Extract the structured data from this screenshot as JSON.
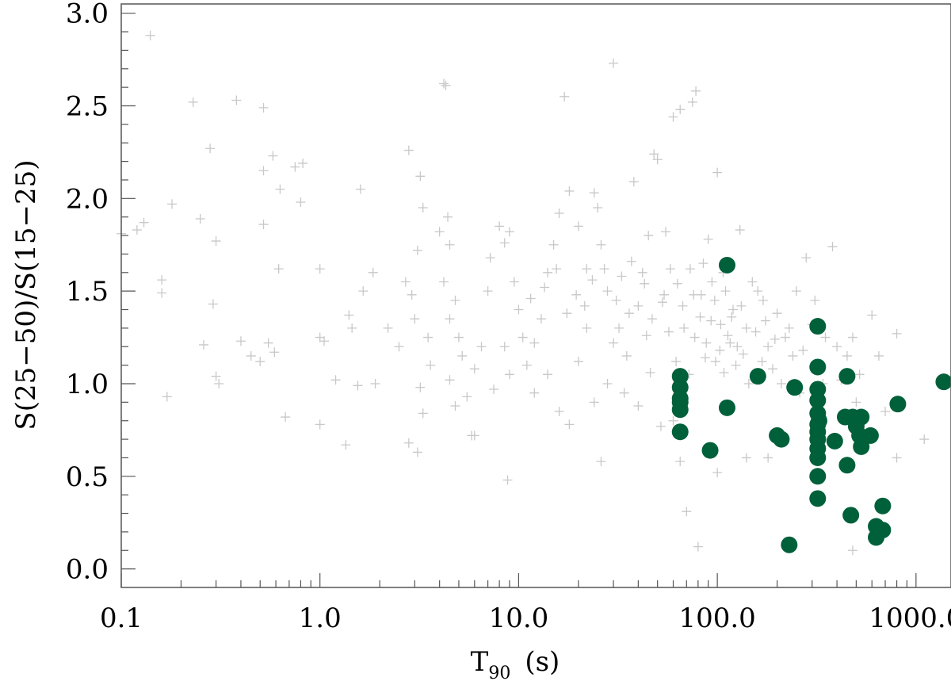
{
  "chart_data": {
    "type": "scatter",
    "x_scale": "log",
    "xlim": [
      0.1,
      1500
    ],
    "ylim": [
      -0.1,
      3.05
    ],
    "grid": false,
    "xlabel": {
      "main": "T",
      "sub": "90",
      "unit": "(s)"
    },
    "ylabel": "S(25−50)/S(15−25)",
    "x_ticks": [
      {
        "value": 0.1,
        "label": "0.1"
      },
      {
        "value": 1,
        "label": "1.0"
      },
      {
        "value": 10,
        "label": "10.0"
      },
      {
        "value": 100,
        "label": "100.0"
      },
      {
        "value": 1000,
        "label": "1000.0"
      }
    ],
    "y_ticks": [
      {
        "value": 0.0,
        "label": "0.0"
      },
      {
        "value": 0.5,
        "label": "0.5"
      },
      {
        "value": 1.0,
        "label": "1.0"
      },
      {
        "value": 1.5,
        "label": "1.5"
      },
      {
        "value": 2.0,
        "label": "2.0"
      },
      {
        "value": 2.5,
        "label": "2.5"
      },
      {
        "value": 3.0,
        "label": "3.0"
      }
    ],
    "colors": {
      "background_points": "#c8c8c8",
      "highlight_points": "#00603a"
    },
    "series": [
      {
        "marker": "plus",
        "points": [
          [
            0.14,
            2.88
          ],
          [
            0.23,
            2.52
          ],
          [
            0.28,
            2.27
          ],
          [
            0.38,
            2.53
          ],
          [
            0.52,
            2.49
          ],
          [
            0.52,
            2.15
          ],
          [
            0.58,
            2.23
          ],
          [
            0.75,
            2.17
          ],
          [
            0.82,
            2.19
          ],
          [
            0.63,
            2.05
          ],
          [
            0.18,
            1.97
          ],
          [
            0.25,
            1.89
          ],
          [
            0.13,
            1.87
          ],
          [
            0.12,
            1.83
          ],
          [
            0.1,
            1.81
          ],
          [
            0.52,
            1.86
          ],
          [
            0.3,
            1.77
          ],
          [
            0.62,
            1.62
          ],
          [
            0.8,
            1.98
          ],
          [
            1.0,
            1.62
          ],
          [
            0.16,
            1.56
          ],
          [
            0.16,
            1.49
          ],
          [
            0.29,
            1.43
          ],
          [
            0.26,
            1.21
          ],
          [
            0.4,
            1.23
          ],
          [
            0.45,
            1.15
          ],
          [
            0.55,
            1.22
          ],
          [
            0.5,
            1.12
          ],
          [
            0.59,
            1.17
          ],
          [
            0.3,
            1.04
          ],
          [
            0.31,
            1.0
          ],
          [
            0.67,
            0.82
          ],
          [
            1.0,
            1.25
          ],
          [
            1.05,
            1.23
          ],
          [
            1.0,
            0.78
          ],
          [
            1.2,
            1.02
          ],
          [
            1.35,
            0.67
          ],
          [
            0.17,
            0.93
          ],
          [
            1.6,
            2.05
          ],
          [
            1.4,
            1.37
          ],
          [
            1.45,
            1.3
          ],
          [
            1.55,
            0.99
          ],
          [
            1.65,
            1.5
          ],
          [
            1.85,
            1.6
          ],
          [
            1.9,
            1.0
          ],
          [
            2.2,
            1.3
          ],
          [
            2.5,
            1.2
          ],
          [
            2.7,
            1.55
          ],
          [
            2.8,
            2.26
          ],
          [
            2.9,
            1.48
          ],
          [
            3.0,
            1.35
          ],
          [
            3.2,
            2.12
          ],
          [
            3.3,
            1.95
          ],
          [
            3.1,
            1.72
          ],
          [
            3.5,
            1.25
          ],
          [
            3.6,
            1.1
          ],
          [
            3.2,
            0.98
          ],
          [
            2.8,
            0.68
          ],
          [
            3.1,
            0.63
          ],
          [
            3.3,
            0.84
          ],
          [
            4.0,
            1.82
          ],
          [
            4.2,
            2.62
          ],
          [
            4.3,
            2.61
          ],
          [
            4.4,
            1.9
          ],
          [
            4.5,
            1.75
          ],
          [
            4.2,
            1.55
          ],
          [
            4.5,
            1.35
          ],
          [
            4.8,
            1.45
          ],
          [
            5.0,
            1.25
          ],
          [
            5.2,
            1.15
          ],
          [
            4.5,
            1.02
          ],
          [
            4.8,
            0.88
          ],
          [
            5.5,
            0.93
          ],
          [
            5.8,
            0.72
          ],
          [
            6.0,
            1.08
          ],
          [
            6.5,
            1.2
          ],
          [
            7.0,
            1.5
          ],
          [
            7.2,
            1.68
          ],
          [
            8.0,
            1.85
          ],
          [
            8.5,
            1.76
          ],
          [
            9.0,
            1.82
          ],
          [
            8.8,
            0.48
          ],
          [
            9.5,
            1.55
          ],
          [
            10.0,
            1.4
          ],
          [
            10.5,
            1.25
          ],
          [
            11.0,
            1.1
          ],
          [
            12.0,
            0.95
          ],
          [
            13.0,
            1.35
          ],
          [
            14.0,
            1.6
          ],
          [
            15.0,
            1.75
          ],
          [
            16.0,
            1.92
          ],
          [
            17.0,
            2.55
          ],
          [
            18.0,
            2.04
          ],
          [
            20.0,
            1.85
          ],
          [
            22.0,
            1.62
          ],
          [
            24.0,
            2.03
          ],
          [
            25.0,
            1.95
          ],
          [
            26.0,
            1.75
          ],
          [
            28.0,
            1.5
          ],
          [
            30.0,
            2.73
          ],
          [
            32.0,
            1.3
          ],
          [
            35.0,
            1.15
          ],
          [
            38.0,
            2.09
          ],
          [
            40.0,
            1.42
          ],
          [
            42.0,
            1.6
          ],
          [
            45.0,
            1.8
          ],
          [
            48.0,
            2.24
          ],
          [
            50.0,
            2.21
          ],
          [
            55.0,
            1.82
          ],
          [
            60.0,
            2.44
          ],
          [
            65.0,
            2.48
          ],
          [
            75.0,
            2.52
          ],
          [
            78.0,
            2.58
          ],
          [
            100.0,
            2.14
          ],
          [
            90.0,
            1.78
          ],
          [
            85.0,
            1.65
          ],
          [
            110.0,
            1.5
          ],
          [
            120.0,
            1.4
          ],
          [
            130.0,
            1.83
          ],
          [
            140.0,
            1.3
          ],
          [
            150.0,
            1.55
          ],
          [
            170.0,
            1.45
          ],
          [
            180.0,
            1.2
          ],
          [
            200.0,
            1.38
          ],
          [
            220.0,
            1.25
          ],
          [
            250.0,
            1.5
          ],
          [
            280.0,
            1.68
          ],
          [
            320.0,
            1.1
          ],
          [
            350.0,
            1.25
          ],
          [
            380.0,
            1.74
          ],
          [
            400.0,
            1.2
          ],
          [
            450.0,
            1.15
          ],
          [
            480.0,
            1.25
          ],
          [
            500.0,
            0.9
          ],
          [
            550.0,
            0.8
          ],
          [
            600.0,
            1.37
          ],
          [
            650.0,
            1.15
          ],
          [
            700.0,
            0.85
          ],
          [
            800.0,
            0.6
          ],
          [
            1100.0,
            0.7
          ],
          [
            800.0,
            1.27
          ],
          [
            65.0,
            0.58
          ],
          [
            60.0,
            0.8
          ],
          [
            70.0,
            0.31
          ],
          [
            80.0,
            0.12
          ],
          [
            100.0,
            0.52
          ],
          [
            140.0,
            0.6
          ],
          [
            180.0,
            0.6
          ],
          [
            480.0,
            0.1
          ],
          [
            6.0,
            0.72
          ],
          [
            7.5,
            0.97
          ],
          [
            8.5,
            1.2
          ],
          [
            9.0,
            1.05
          ],
          [
            12.0,
            1.22
          ],
          [
            14.0,
            1.05
          ],
          [
            16.0,
            0.85
          ],
          [
            18.0,
            0.78
          ],
          [
            20.0,
            1.12
          ],
          [
            22.0,
            1.3
          ],
          [
            24.0,
            0.9
          ],
          [
            26.0,
            0.58
          ],
          [
            28.0,
            1.0
          ],
          [
            30.0,
            1.22
          ],
          [
            34.0,
            0.95
          ],
          [
            36.0,
            1.38
          ],
          [
            40.0,
            0.88
          ],
          [
            44.0,
            1.26
          ],
          [
            46.0,
            1.06
          ],
          [
            52.0,
            0.77
          ],
          [
            54.0,
            1.48
          ],
          [
            58.0,
            1.62
          ],
          [
            62.0,
            1.12
          ],
          [
            68.0,
            1.3
          ],
          [
            72.0,
            1.05
          ],
          [
            76.0,
            1.48
          ],
          [
            82.0,
            1.36
          ],
          [
            88.0,
            1.22
          ],
          [
            94.0,
            1.55
          ],
          [
            98.0,
            1.12
          ],
          [
            104.0,
            1.32
          ],
          [
            108.0,
            1.06
          ],
          [
            116.0,
            1.22
          ],
          [
            124.0,
            1.1
          ],
          [
            132.0,
            1.42
          ],
          [
            144.0,
            1.0
          ],
          [
            156.0,
            1.28
          ],
          [
            168.0,
            1.12
          ],
          [
            190.0,
            1.08
          ],
          [
            210.0,
            1.0
          ],
          [
            240.0,
            1.15
          ],
          [
            260.0,
            0.95
          ],
          [
            300.0,
            1.32
          ],
          [
            340.0,
            1.0
          ],
          [
            420.0,
            1.02
          ],
          [
            520.0,
            1.05
          ],
          [
            11.5,
            1.46
          ],
          [
            13.5,
            1.52
          ],
          [
            15.5,
            1.62
          ],
          [
            17.5,
            1.38
          ],
          [
            19.5,
            1.48
          ],
          [
            21.5,
            1.42
          ],
          [
            23.5,
            1.56
          ],
          [
            27.0,
            1.62
          ],
          [
            31.0,
            1.45
          ],
          [
            33.0,
            1.58
          ],
          [
            37.0,
            1.66
          ],
          [
            43.0,
            1.54
          ],
          [
            47.0,
            1.35
          ],
          [
            53.0,
            1.44
          ],
          [
            57.0,
            1.28
          ],
          [
            63.0,
            1.54
          ],
          [
            67.0,
            1.42
          ],
          [
            73.0,
            1.62
          ],
          [
            77.0,
            1.25
          ],
          [
            83.0,
            1.48
          ],
          [
            87.0,
            1.14
          ],
          [
            93.0,
            1.34
          ],
          [
            97.0,
            1.45
          ],
          [
            103.0,
            1.18
          ],
          [
            107.0,
            1.6
          ],
          [
            113.0,
            1.26
          ],
          [
            118.0,
            1.36
          ],
          [
            126.0,
            1.2
          ],
          [
            135.0,
            1.16
          ],
          [
            160.0,
            1.5
          ],
          [
            175.0,
            1.34
          ],
          [
            195.0,
            1.24
          ],
          [
            230.0,
            1.3
          ],
          [
            270.0,
            1.18
          ],
          [
            310.0,
            1.45
          ]
        ]
      },
      {
        "marker": "circle",
        "points": [
          [
            112.0,
            1.64
          ],
          [
            320.0,
            1.31
          ],
          [
            65.0,
            1.04
          ],
          [
            65.0,
            0.98
          ],
          [
            65.0,
            0.92
          ],
          [
            65.0,
            0.9
          ],
          [
            65.0,
            0.86
          ],
          [
            65.0,
            0.74
          ],
          [
            112.0,
            0.87
          ],
          [
            92.0,
            0.64
          ],
          [
            160.0,
            1.04
          ],
          [
            245.0,
            0.98
          ],
          [
            200.0,
            0.72
          ],
          [
            210.0,
            0.7
          ],
          [
            320.0,
            1.09
          ],
          [
            320.0,
            0.97
          ],
          [
            320.0,
            0.91
          ],
          [
            320.0,
            0.84
          ],
          [
            320.0,
            0.78
          ],
          [
            320.0,
            0.74
          ],
          [
            320.0,
            0.7
          ],
          [
            320.0,
            0.65
          ],
          [
            320.0,
            0.6
          ],
          [
            320.0,
            0.5
          ],
          [
            320.0,
            0.38
          ],
          [
            325.0,
            0.8
          ],
          [
            390.0,
            0.69
          ],
          [
            450.0,
            1.04
          ],
          [
            440.0,
            0.82
          ],
          [
            480.0,
            0.82
          ],
          [
            530.0,
            0.82
          ],
          [
            500.0,
            0.77
          ],
          [
            520.0,
            0.72
          ],
          [
            590.0,
            0.72
          ],
          [
            530.0,
            0.66
          ],
          [
            450.0,
            0.56
          ],
          [
            470.0,
            0.29
          ],
          [
            680.0,
            0.34
          ],
          [
            630.0,
            0.23
          ],
          [
            680.0,
            0.21
          ],
          [
            630.0,
            0.17
          ],
          [
            810.0,
            0.89
          ],
          [
            1380.0,
            1.01
          ],
          [
            230.0,
            0.13
          ]
        ]
      }
    ]
  }
}
